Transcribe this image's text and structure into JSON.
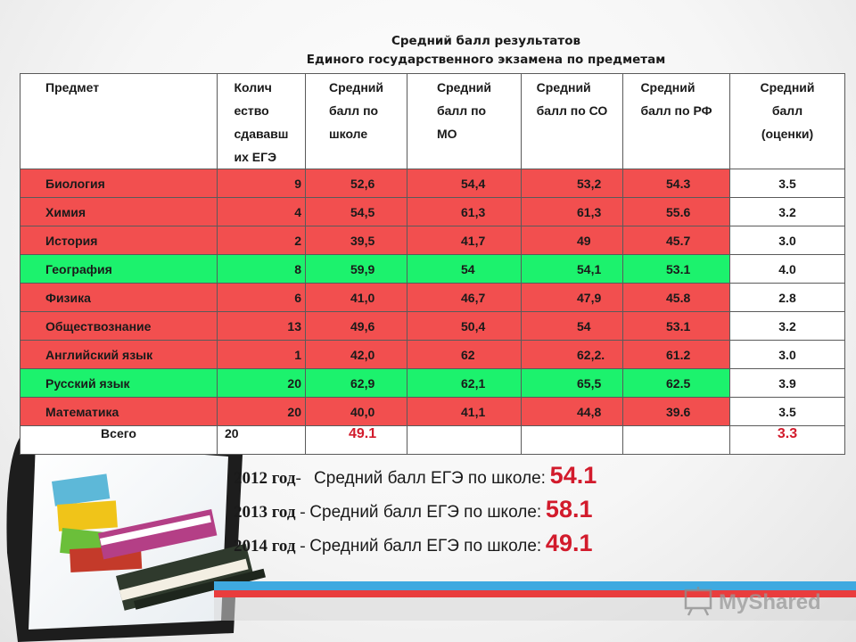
{
  "title": {
    "line1": "Средний балл результатов",
    "line2": "Единого государственного экзамена по предметам"
  },
  "table": {
    "headers": [
      "Предмет",
      "Колич\nество\nсдававш\nих ЕГЭ",
      "Средний\nбалл по\nшколе",
      "Средний\nбалл по\n      МО",
      "Средний\nбалл по СО",
      "Средний\nбалл по РФ",
      "Средний\nбалл\n(оценки)"
    ],
    "rows": [
      {
        "status": "red",
        "cells": [
          "Биология",
          "9",
          "52,6",
          "54,4",
          "53,2",
          "54.3",
          "3.5"
        ]
      },
      {
        "status": "red",
        "cells": [
          "Химия",
          "4",
          "54,5",
          "61,3",
          "61,3",
          "55.6",
          "3.2"
        ]
      },
      {
        "status": "red",
        "cells": [
          "История",
          "2",
          "39,5",
          "41,7",
          "49",
          "45.7",
          "3.0"
        ]
      },
      {
        "status": "green",
        "cells": [
          "География",
          "8",
          "59,9",
          "54",
          "54,1",
          "53.1",
          "4.0"
        ]
      },
      {
        "status": "red",
        "cells": [
          "Физика",
          "6",
          "41,0",
          "46,7",
          "47,9",
          "45.8",
          "2.8"
        ]
      },
      {
        "status": "red",
        "cells": [
          "Обществознание",
          "13",
          "49,6",
          "50,4",
          "54",
          "53.1",
          "3.2"
        ]
      },
      {
        "status": "red",
        "cells": [
          "Английский язык",
          "1",
          "42,0",
          "62",
          "62,2.",
          "61.2",
          "3.0"
        ]
      },
      {
        "status": "green",
        "cells": [
          "Русский язык",
          "20",
          "62,9",
          "62,1",
          "65,5",
          "62.5",
          "3.9"
        ]
      },
      {
        "status": "red",
        "cells": [
          "Математика",
          "20",
          "40,0",
          "41,1",
          "44,8",
          "39.6",
          "3.5"
        ]
      }
    ],
    "total": {
      "label": "Всего",
      "count": "20",
      "school": "49.1",
      "grade": "3.3"
    }
  },
  "summary": [
    {
      "year": "2012 год",
      "sep": "- ",
      "label": "Средний балл ЕГЭ по школе:",
      "value": "54.1"
    },
    {
      "year": "2013 год",
      "sep": " - ",
      "label": "Средний балл ЕГЭ по школе:",
      "value": "58.1"
    },
    {
      "year": "2014 год",
      "sep": " - ",
      "label": "Средний балл ЕГЭ по школе:",
      "value": "49.1"
    }
  ],
  "watermark": {
    "text": "MyShared"
  },
  "colors": {
    "red_row": "#f24f4f",
    "green_row": "#1cf26d",
    "accent": "#d21b2c"
  }
}
